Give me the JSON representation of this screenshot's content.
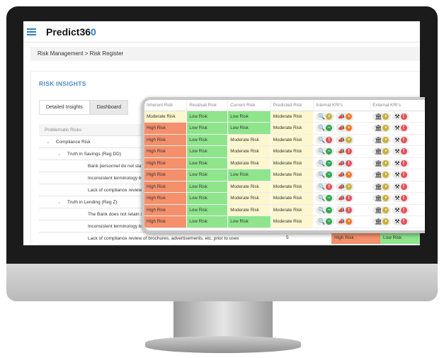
{
  "app": {
    "logo": "Predict36",
    "logo_accent": "0"
  },
  "breadcrumb": {
    "items": [
      "Risk Management",
      "Risk Register"
    ],
    "separator": ">"
  },
  "panel": {
    "title": "RISK INSIGHTS",
    "tabs": [
      {
        "label": "Detailed Insights",
        "active": true
      },
      {
        "label": "Dashboard",
        "active": false
      }
    ]
  },
  "tree": {
    "header": "Problematic Risks",
    "rows": [
      {
        "label": "Compliance Risk",
        "level": 0,
        "expanded": true
      },
      {
        "label": "Truth in Savings (Reg DD)",
        "level": 1,
        "expanded": true
      },
      {
        "label": "Bank personnel do not state th",
        "level": 2
      },
      {
        "label": "Inconsistent terminology betwe",
        "level": 2
      },
      {
        "label": "Lack of compliance review of br",
        "level": 2
      },
      {
        "label": "Truth in Lending (Reg Z)",
        "level": 1,
        "expanded": true
      },
      {
        "label": "The Bank does not retain samp",
        "level": 2
      },
      {
        "label": "Inconsistent terminology betwe",
        "level": 2
      },
      {
        "label": "Lack of compliance review of brochures, advertisements, etc. prior to usex",
        "level": 2,
        "score": "5",
        "inherent": "High Risk",
        "residual": "Low Risk"
      }
    ]
  },
  "colors": {
    "High": "#f4906b",
    "Low": "#8ee58c",
    "Moderate": "#fdf7cf",
    "accent": "#2f7ec2",
    "status": {
      "g": "#2fa84f",
      "y": "#c9b13d",
      "r": "#e0505a",
      "o": "#f07a2a"
    }
  },
  "grid": {
    "headers": [
      "Inherent Risk",
      "Residual Risk",
      "Current Risk",
      "Predicted Risk",
      "Internal KRI's",
      "External KRI's"
    ],
    "rows": [
      [
        "Moderate Risk",
        "Low Risk",
        "Low Risk",
        "Moderate Risk",
        "y",
        "o",
        "y",
        "r"
      ],
      [
        "High Risk",
        "Low Risk",
        "Low Risk",
        "Moderate Risk",
        "g",
        "o",
        "y",
        "r"
      ],
      [
        "High Risk",
        "Low Risk",
        "Moderate Risk",
        "Moderate Risk",
        "r",
        "y",
        "y",
        "r"
      ],
      [
        "High Risk",
        "Low Risk",
        "Moderate Risk",
        "Moderate Risk",
        "g",
        "r",
        "y",
        "r"
      ],
      [
        "High Risk",
        "Low Risk",
        "Moderate Risk",
        "Moderate Risk",
        "g",
        "r",
        "y",
        "r"
      ],
      [
        "High Risk",
        "Low Risk",
        "Low Risk",
        "Moderate Risk",
        "g",
        "o",
        "y",
        "r"
      ],
      [
        "High Risk",
        "Low Risk",
        "Moderate Risk",
        "Moderate Risk",
        "r",
        "y",
        "y",
        "r"
      ],
      [
        "High Risk",
        "Low Risk",
        "Moderate Risk",
        "Moderate Risk",
        "g",
        "r",
        "y",
        "r"
      ],
      [
        "High Risk",
        "Low Risk",
        "Moderate Risk",
        "Moderate Risk",
        "g",
        "r",
        "y",
        "r"
      ],
      [
        "High Risk",
        "Low Risk",
        "Low Risk",
        "Moderate Risk",
        "g",
        "o",
        "y",
        "r"
      ]
    ],
    "icons": [
      "search-icon",
      "megaphone-icon",
      "bank-icon",
      "gavel-icon"
    ]
  }
}
